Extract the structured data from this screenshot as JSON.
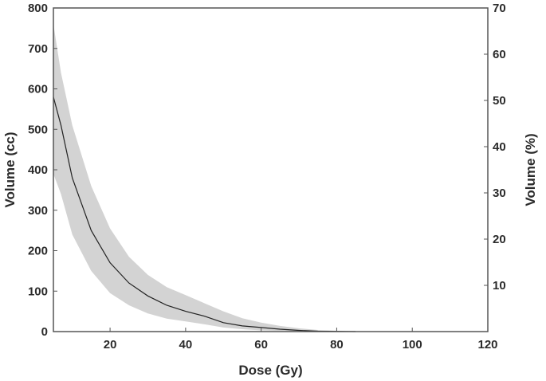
{
  "chart_data": {
    "type": "area",
    "xlabel": "Dose (Gy)",
    "ylabel": "Volume (cc)",
    "y2label": "Volume (%)",
    "xlim": [
      5,
      120
    ],
    "ylim": [
      0,
      800
    ],
    "y2lim": [
      0,
      70
    ],
    "xticks": [
      20,
      40,
      60,
      80,
      100,
      120
    ],
    "yticks": [
      0,
      100,
      200,
      300,
      400,
      500,
      600,
      700,
      800
    ],
    "y2ticks": [
      10,
      20,
      30,
      40,
      50,
      60,
      70
    ],
    "grid": false,
    "colors": {
      "band": "#d3d3d3",
      "line": "#222222",
      "axis": "#555555"
    },
    "series": [
      {
        "type": "line",
        "x": [
          5,
          7,
          10,
          15,
          20,
          25,
          30,
          35,
          40,
          45,
          50,
          55,
          60,
          65,
          70,
          75,
          80,
          85
        ],
        "values": [
          580,
          510,
          380,
          250,
          170,
          120,
          88,
          65,
          50,
          38,
          22,
          14,
          10,
          6,
          3,
          1,
          0.5,
          0
        ]
      },
      {
        "type": "band",
        "x": [
          5,
          7,
          10,
          15,
          20,
          25,
          30,
          35,
          40,
          45,
          50,
          55,
          60,
          65,
          70,
          75,
          80,
          85
        ],
        "upper": [
          760,
          640,
          510,
          360,
          255,
          185,
          140,
          110,
          90,
          70,
          50,
          33,
          22,
          14,
          8,
          4,
          2,
          0
        ],
        "lower": [
          390,
          340,
          240,
          150,
          95,
          65,
          45,
          32,
          25,
          18,
          10,
          6,
          3,
          2,
          1,
          0,
          0,
          0
        ]
      }
    ]
  }
}
